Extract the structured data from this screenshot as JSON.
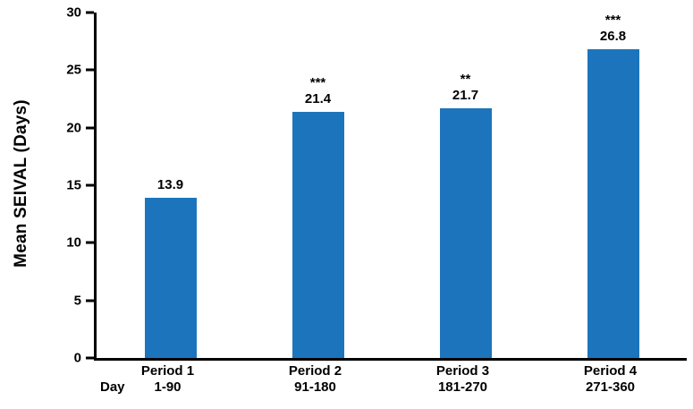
{
  "chart_data": {
    "type": "bar",
    "title": "",
    "ylabel": "Mean SEIVAL (Days)",
    "xlabel_prefix": "Day",
    "ylim": [
      0,
      30
    ],
    "yticks": [
      0,
      5,
      10,
      15,
      20,
      25,
      30
    ],
    "categories": [
      "Period 1",
      "Period 2",
      "Period 3",
      "Period 4"
    ],
    "day_ranges": [
      "1-90",
      "91-180",
      "181-270",
      "271-360"
    ],
    "values": [
      13.9,
      21.4,
      21.7,
      26.8
    ],
    "annotations": [
      "",
      "***",
      "**",
      "***"
    ],
    "bar_color": "#1C75BC",
    "axis_color": "#000000",
    "grid": false,
    "legend": "none"
  }
}
